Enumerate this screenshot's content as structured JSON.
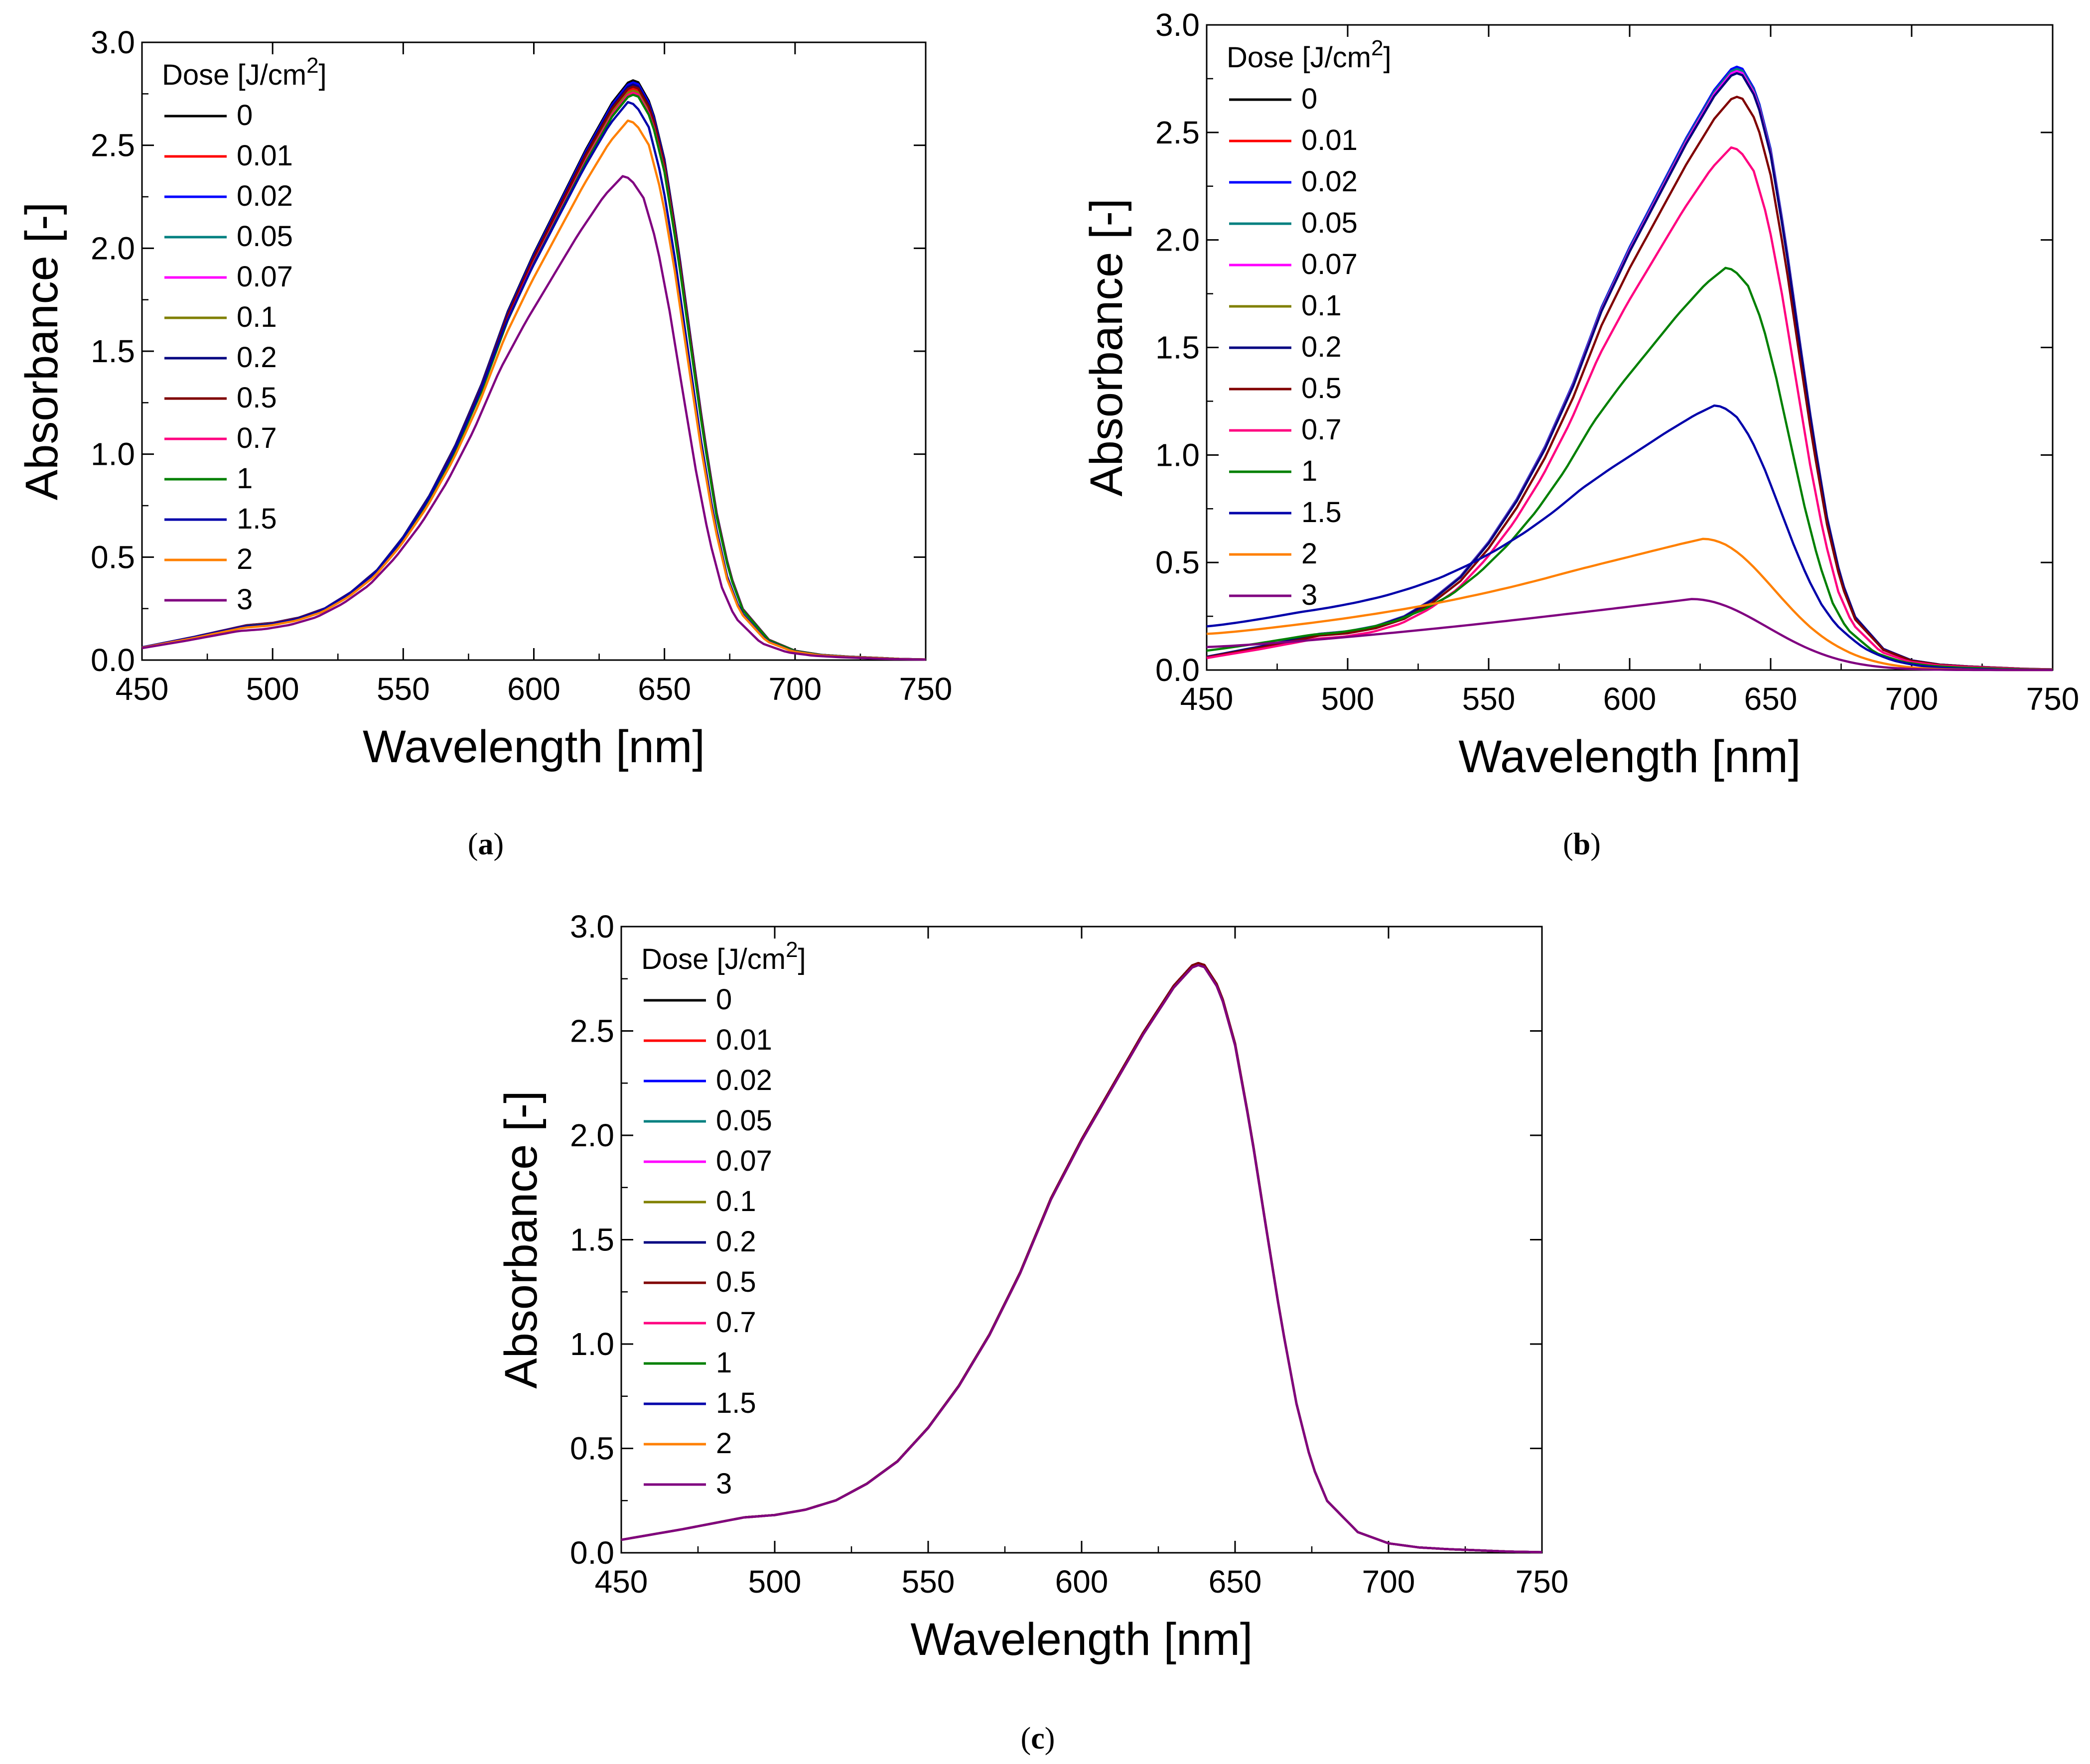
{
  "figure": {
    "panels": [
      "(a)",
      "(b)",
      "(c)"
    ]
  },
  "legend_title": "Dose [J/cm2]",
  "chart_data": [
    {
      "id": "a",
      "panel_label": "(a)",
      "type": "line",
      "xlabel": "Wavelength [nm]",
      "ylabel": "Absorbance [-]",
      "xlim": [
        450,
        750
      ],
      "ylim": [
        0,
        3.0
      ],
      "xticks": [
        "450",
        "500",
        "550",
        "600",
        "650",
        "700",
        "750"
      ],
      "yticks": [
        "0.0",
        "0.5",
        "1.0",
        "1.5",
        "2.0",
        "2.5",
        "3.0"
      ],
      "legend": {
        "title": "Dose [J/cm2]",
        "placement": "top-left"
      },
      "series": [
        {
          "name": "0",
          "color": "#000000",
          "peak": 2.82,
          "peak_x": 637
        },
        {
          "name": "0.01",
          "color": "#ff0000",
          "peak": 2.78,
          "peak_x": 637
        },
        {
          "name": "0.02",
          "color": "#0000ff",
          "peak": 2.81,
          "peak_x": 637
        },
        {
          "name": "0.05",
          "color": "#008080",
          "peak": 2.79,
          "peak_x": 637
        },
        {
          "name": "0.07",
          "color": "#ff00ff",
          "peak": 2.8,
          "peak_x": 637
        },
        {
          "name": "0.1",
          "color": "#808000",
          "peak": 2.77,
          "peak_x": 637
        },
        {
          "name": "0.2",
          "color": "#000080",
          "peak": 2.8,
          "peak_x": 637
        },
        {
          "name": "0.5",
          "color": "#800000",
          "peak": 2.79,
          "peak_x": 637
        },
        {
          "name": "0.7",
          "color": "#ff0080",
          "peak": 2.76,
          "peak_x": 637
        },
        {
          "name": "1",
          "color": "#008000",
          "peak": 2.75,
          "peak_x": 637
        },
        {
          "name": "1.5",
          "color": "#0000aa",
          "peak": 2.71,
          "peak_x": 636
        },
        {
          "name": "2",
          "color": "#ff8000",
          "peak": 2.62,
          "peak_x": 636
        },
        {
          "name": "3",
          "color": "#800080",
          "peak": 2.35,
          "peak_x": 634
        }
      ]
    },
    {
      "id": "b",
      "panel_label": "(b)",
      "type": "line",
      "xlabel": "Wavelength [nm]",
      "ylabel": "Absorbance [-]",
      "xlim": [
        450,
        750
      ],
      "ylim": [
        0,
        3.0
      ],
      "xticks": [
        "450",
        "500",
        "550",
        "600",
        "650",
        "700",
        "750"
      ],
      "yticks": [
        "0.0",
        "0.5",
        "1.0",
        "1.5",
        "2.0",
        "2.5",
        "3.0"
      ],
      "legend": {
        "title": "Dose [J/cm2]",
        "placement": "top-left"
      },
      "series": [
        {
          "name": "0",
          "color": "#000000",
          "peak": 2.8,
          "peak_x": 637
        },
        {
          "name": "0.01",
          "color": "#ff0000",
          "peak": 2.79,
          "peak_x": 637
        },
        {
          "name": "0.02",
          "color": "#0000ff",
          "peak": 2.81,
          "peak_x": 637
        },
        {
          "name": "0.05",
          "color": "#008080",
          "peak": 2.8,
          "peak_x": 637
        },
        {
          "name": "0.07",
          "color": "#ff00ff",
          "peak": 2.79,
          "peak_x": 637
        },
        {
          "name": "0.1",
          "color": "#808000",
          "peak": 2.78,
          "peak_x": 637
        },
        {
          "name": "0.2",
          "color": "#000080",
          "peak": 2.78,
          "peak_x": 637
        },
        {
          "name": "0.5",
          "color": "#800000",
          "peak": 2.67,
          "peak_x": 637
        },
        {
          "name": "0.7",
          "color": "#ff0080",
          "peak": 2.43,
          "peak_x": 636
        },
        {
          "name": "1",
          "color": "#008000",
          "peak": 1.87,
          "peak_x": 634
        },
        {
          "name": "1.5",
          "color": "#0000aa",
          "peak": 1.23,
          "peak_x": 630
        },
        {
          "name": "2",
          "color": "#ff8000",
          "peak": 0.61,
          "peak_x": 626
        },
        {
          "name": "3",
          "color": "#800080",
          "peak": 0.33,
          "peak_x": 622
        }
      ]
    },
    {
      "id": "c",
      "panel_label": "(c)",
      "type": "line",
      "xlabel": "Wavelength [nm]",
      "ylabel": "Absorbance [-]",
      "xlim": [
        450,
        750
      ],
      "ylim": [
        0,
        3.0
      ],
      "xticks": [
        "450",
        "500",
        "550",
        "600",
        "650",
        "700",
        "750"
      ],
      "yticks": [
        "0.0",
        "0.5",
        "1.0",
        "1.5",
        "2.0",
        "2.5",
        "3.0"
      ],
      "legend": {
        "title": "Dose [J/cm2]",
        "placement": "top-left"
      },
      "series": [
        {
          "name": "0",
          "color": "#000000",
          "peak": 2.83,
          "peak_x": 637
        },
        {
          "name": "0.01",
          "color": "#ff0000",
          "peak": 2.83,
          "peak_x": 637
        },
        {
          "name": "0.02",
          "color": "#0000ff",
          "peak": 2.83,
          "peak_x": 637
        },
        {
          "name": "0.05",
          "color": "#008080",
          "peak": 2.83,
          "peak_x": 637
        },
        {
          "name": "0.07",
          "color": "#ff00ff",
          "peak": 2.83,
          "peak_x": 637
        },
        {
          "name": "0.1",
          "color": "#808000",
          "peak": 2.83,
          "peak_x": 637
        },
        {
          "name": "0.2",
          "color": "#000080",
          "peak": 2.83,
          "peak_x": 637
        },
        {
          "name": "0.5",
          "color": "#800000",
          "peak": 2.83,
          "peak_x": 637
        },
        {
          "name": "0.7",
          "color": "#ff0080",
          "peak": 2.82,
          "peak_x": 637
        },
        {
          "name": "1",
          "color": "#008000",
          "peak": 2.82,
          "peak_x": 637
        },
        {
          "name": "1.5",
          "color": "#0000aa",
          "peak": 2.82,
          "peak_x": 637
        },
        {
          "name": "2",
          "color": "#ff8000",
          "peak": 2.82,
          "peak_x": 637
        },
        {
          "name": "3",
          "color": "#800080",
          "peak": 2.82,
          "peak_x": 637
        }
      ]
    }
  ]
}
